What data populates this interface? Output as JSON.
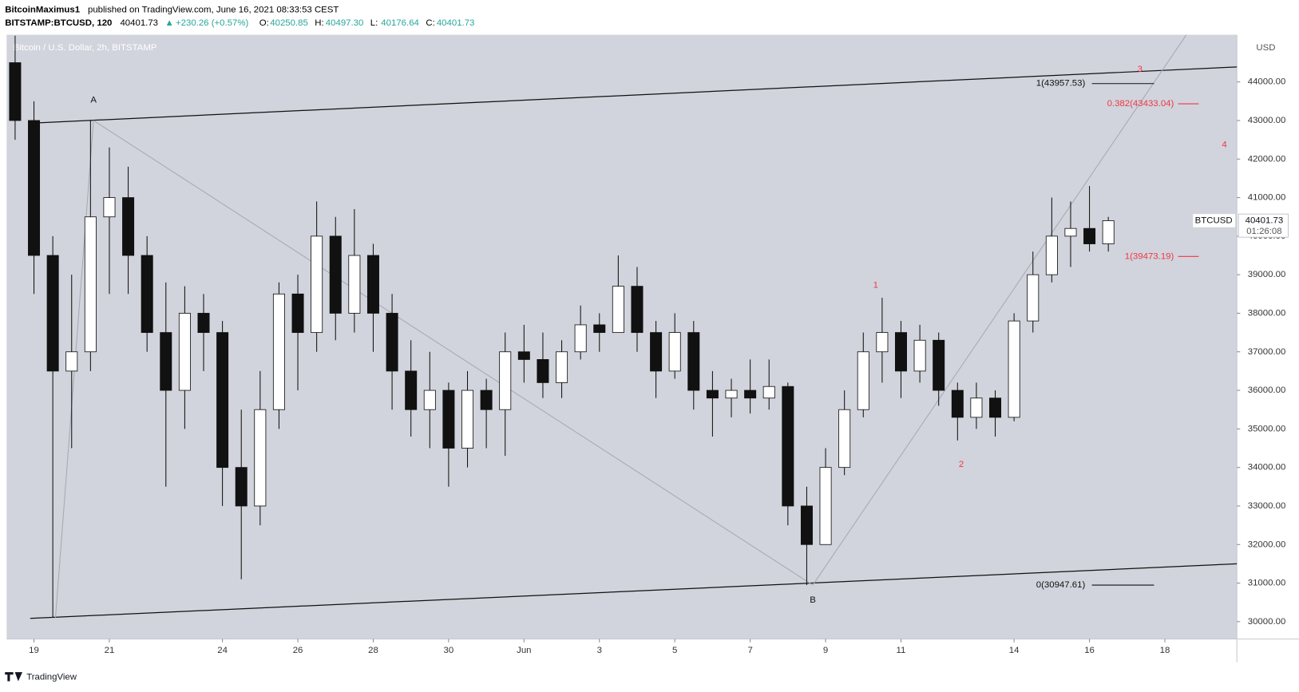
{
  "header": {
    "author": "BitcoinMaximus1",
    "published": "published on TradingView.com, June 16, 2021 08:33:53 CEST",
    "symbol": "BITSTAMP:BTCUSD, 120",
    "last": "40401.73",
    "arrow": "▲",
    "change": "+230.26 (+0.57%)",
    "ohlc": [
      {
        "key": "O:",
        "value": "40250.85"
      },
      {
        "key": "H:",
        "value": "40497.30"
      },
      {
        "key": "L:",
        "value": "40176.64"
      },
      {
        "key": "C:",
        "value": "40401.73"
      }
    ]
  },
  "footer": {
    "brand": "TradingView"
  },
  "chart_data": {
    "type": "candlestick",
    "title": "Bitcoin / U.S. Dollar, 2h, BITSTAMP",
    "y_unit": "USD",
    "xlim": [
      -0.725,
      31.91
    ],
    "ylim": [
      29549,
      45224
    ],
    "xticks": [
      {
        "value": 0,
        "label": "19"
      },
      {
        "value": 2,
        "label": "21"
      },
      {
        "value": 5,
        "label": "24"
      },
      {
        "value": 7,
        "label": "26"
      },
      {
        "value": 9,
        "label": "28"
      },
      {
        "value": 11,
        "label": "30"
      },
      {
        "value": 13,
        "label": "Jun"
      },
      {
        "value": 15,
        "label": "3"
      },
      {
        "value": 17,
        "label": "5"
      },
      {
        "value": 19,
        "label": "7"
      },
      {
        "value": 21,
        "label": "9"
      },
      {
        "value": 23,
        "label": "11"
      },
      {
        "value": 26,
        "label": "14"
      },
      {
        "value": 28,
        "label": "16"
      },
      {
        "value": 30,
        "label": "18"
      }
    ],
    "yticks": [
      {
        "value": 30000,
        "label": "30000.00"
      },
      {
        "value": 31000,
        "label": "31000.00"
      },
      {
        "value": 32000,
        "label": "32000.00"
      },
      {
        "value": 33000,
        "label": "33000.00"
      },
      {
        "value": 34000,
        "label": "34000.00"
      },
      {
        "value": 35000,
        "label": "35000.00"
      },
      {
        "value": 36000,
        "label": "36000.00"
      },
      {
        "value": 37000,
        "label": "37000.00"
      },
      {
        "value": 38000,
        "label": "38000.00"
      },
      {
        "value": 39000,
        "label": "39000.00"
      },
      {
        "value": 40000,
        "label": "40000.00"
      },
      {
        "value": 41000,
        "label": "41000.00"
      },
      {
        "value": 42000,
        "label": "42000.00"
      },
      {
        "value": 43000,
        "label": "43000.00"
      },
      {
        "value": 44000,
        "label": "44000.00"
      }
    ],
    "grid": false,
    "background": "#d1d4dc",
    "up_color": "#ffffff",
    "down_color": "#111111",
    "x": [
      -0.5,
      0,
      0.5,
      1,
      1.5,
      2,
      2.5,
      3,
      3.5,
      4,
      4.5,
      5,
      5.5,
      6,
      6.5,
      7,
      7.5,
      8,
      8.5,
      9,
      9.5,
      10,
      10.5,
      11,
      11.5,
      12,
      12.5,
      13,
      13.5,
      14,
      14.5,
      15,
      15.5,
      16,
      16.5,
      17,
      17.5,
      18,
      18.5,
      19,
      19.5,
      20,
      20.5,
      21,
      21.5,
      22,
      22.5,
      23,
      23.5,
      24,
      24.5,
      25,
      25.5,
      26,
      26.5,
      27,
      27.5,
      28,
      28.5
    ],
    "open": [
      44500,
      43000,
      39500,
      36500,
      37000,
      40500,
      41000,
      39500,
      37500,
      36000,
      38000,
      37500,
      34000,
      33000,
      35500,
      38500,
      37500,
      40000,
      38000,
      39500,
      38000,
      36500,
      35500,
      36000,
      34500,
      36000,
      35500,
      37000,
      36800,
      36200,
      37000,
      37700,
      37500,
      38700,
      37500,
      36500,
      37500,
      36000,
      35800,
      36000,
      35800,
      36100,
      33000,
      32000,
      34000,
      35500,
      37000,
      37500,
      36500,
      37300,
      36000,
      35300,
      35800,
      35300,
      37800,
      39000,
      40000,
      40200,
      39800
    ],
    "high": [
      45200,
      43500,
      40000,
      39000,
      43000,
      42300,
      41800,
      40000,
      38800,
      38700,
      38500,
      37800,
      35500,
      36500,
      38800,
      39000,
      40900,
      40500,
      40700,
      39800,
      38500,
      37300,
      37000,
      36200,
      36500,
      36300,
      37500,
      37700,
      37500,
      37300,
      38200,
      38000,
      39500,
      39200,
      37800,
      38000,
      37800,
      36500,
      36300,
      36800,
      36800,
      36200,
      33500,
      34500,
      36000,
      37500,
      38400,
      37800,
      37700,
      37500,
      36200,
      36200,
      36000,
      38000,
      39600,
      41000,
      40900,
      41300,
      40500
    ],
    "low": [
      42500,
      38500,
      30100,
      34500,
      36500,
      38500,
      38500,
      37000,
      33500,
      35000,
      36500,
      33000,
      31100,
      32500,
      35000,
      36000,
      37000,
      37300,
      37500,
      37000,
      35500,
      34800,
      34500,
      33500,
      34000,
      34500,
      34300,
      36200,
      35800,
      35800,
      36800,
      37000,
      37500,
      37000,
      35800,
      36300,
      35500,
      34800,
      35300,
      35400,
      35500,
      32500,
      30948,
      32000,
      33800,
      35300,
      36200,
      35800,
      36200,
      35600,
      34700,
      35000,
      34800,
      35200,
      37500,
      38800,
      39200,
      39600,
      39600
    ],
    "close": [
      43000,
      39500,
      36500,
      37000,
      40500,
      41000,
      39500,
      37500,
      36000,
      38000,
      37500,
      34000,
      33000,
      35500,
      38500,
      37500,
      40000,
      38000,
      39500,
      38000,
      36500,
      35500,
      36000,
      34500,
      36000,
      35500,
      37000,
      36800,
      36200,
      37000,
      37700,
      37500,
      38700,
      37500,
      36500,
      37500,
      36000,
      35800,
      36000,
      35800,
      36100,
      33000,
      32000,
      34000,
      35500,
      37000,
      37500,
      36500,
      37300,
      36000,
      35300,
      35800,
      35300,
      37800,
      39000,
      40000,
      40200,
      39800,
      40401.73
    ],
    "price_tag": {
      "symbol": "BTCUSD",
      "countdown": "01:26:08"
    },
    "lines": [
      {
        "from": [
          -0.1,
          30085
        ],
        "to": [
          31.91,
          31500
        ],
        "color": "#111111"
      },
      {
        "from": [
          -0.1,
          42930
        ],
        "to": [
          31.91,
          44390
        ],
        "color": "#111111"
      },
      {
        "from": [
          0.57,
          30085
        ],
        "to": [
          1.58,
          43000
        ],
        "color": "#a6a9b3"
      },
      {
        "from": [
          1.58,
          43000
        ],
        "to": [
          20.66,
          30948
        ],
        "color": "#a6a9b3"
      },
      {
        "from": [
          20.66,
          30948
        ],
        "to": [
          30.57,
          45224
        ],
        "color": "#a6a9b3"
      }
    ],
    "fib_levels": [
      {
        "label": "1(43957.53)",
        "value": 43957.53,
        "color": "#111111"
      },
      {
        "label": "0.382(43433.04)",
        "value": 43433.04,
        "color": "#f23645"
      },
      {
        "label": "1(39473.19)",
        "value": 39473.19,
        "color": "#f23645"
      },
      {
        "label": "0(30947.61)",
        "value": 30947.61,
        "color": "#111111"
      }
    ],
    "wave_labels": [
      {
        "label": "A",
        "x": 1.58,
        "y": 43530,
        "color": "#111111"
      },
      {
        "label": "B",
        "x": 20.66,
        "y": 30560,
        "color": "#111111"
      },
      {
        "label": "1",
        "x": 22.33,
        "y": 38720,
        "color": "#f23645"
      },
      {
        "label": "2",
        "x": 24.6,
        "y": 34080,
        "color": "#f23645"
      },
      {
        "label": "3",
        "x": 29.34,
        "y": 44320,
        "color": "#f23645"
      },
      {
        "label": "4",
        "x": 31.58,
        "y": 42370,
        "color": "#f23645"
      }
    ]
  }
}
